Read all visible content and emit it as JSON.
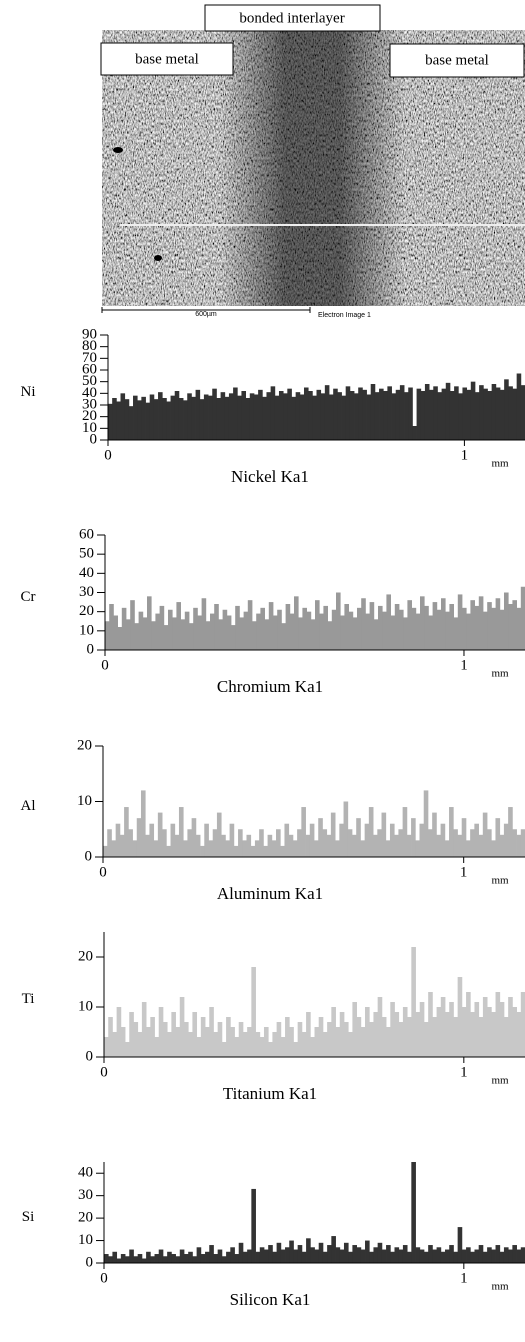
{
  "image": {
    "labels": {
      "center": "bonded interlayer",
      "left": "base metal",
      "right": "base metal"
    },
    "scale_bar": "600µm",
    "caption": "Electron Image 1"
  },
  "chart_data": [
    {
      "type": "bar",
      "ylabel": "Ni",
      "title": "Nickel Ka1",
      "xunit": "mm",
      "color": "#333333",
      "ylim": [
        0,
        90
      ],
      "yticks": [
        0,
        10,
        20,
        30,
        40,
        50,
        60,
        70,
        80,
        90
      ],
      "xlim": [
        0,
        1.17
      ],
      "xticks": [
        0,
        1
      ],
      "grid": false,
      "values": [
        31,
        36,
        33,
        40,
        35,
        29,
        38,
        34,
        37,
        32,
        39,
        35,
        41,
        36,
        33,
        38,
        42,
        36,
        34,
        40,
        37,
        43,
        35,
        39,
        38,
        44,
        36,
        41,
        37,
        40,
        45,
        38,
        42,
        36,
        40,
        39,
        43,
        37,
        41,
        46,
        38,
        42,
        40,
        44,
        37,
        41,
        39,
        45,
        42,
        38,
        43,
        40,
        47,
        39,
        44,
        41,
        38,
        46,
        42,
        40,
        45,
        43,
        39,
        48,
        41,
        44,
        42,
        46,
        40,
        43,
        47,
        41,
        45,
        12,
        44,
        42,
        48,
        43,
        46,
        41,
        44,
        49,
        42,
        46,
        40,
        45,
        43,
        50,
        41,
        47,
        44,
        42,
        48,
        45,
        43,
        52,
        46,
        44,
        57,
        47
      ]
    },
    {
      "type": "bar",
      "ylabel": "Cr",
      "title": "Chromium Ka1",
      "xunit": "mm",
      "color": "#999999",
      "ylim": [
        0,
        60
      ],
      "yticks": [
        0,
        10,
        20,
        30,
        40,
        50,
        60
      ],
      "xlim": [
        0,
        1.17
      ],
      "xticks": [
        0,
        1
      ],
      "grid": false,
      "values": [
        15,
        24,
        18,
        12,
        22,
        16,
        26,
        14,
        20,
        17,
        28,
        15,
        19,
        23,
        13,
        21,
        17,
        25,
        16,
        20,
        14,
        22,
        18,
        27,
        15,
        19,
        24,
        16,
        21,
        18,
        13,
        23,
        17,
        20,
        26,
        15,
        19,
        22,
        16,
        25,
        18,
        21,
        14,
        24,
        19,
        28,
        17,
        22,
        20,
        16,
        26,
        19,
        23,
        15,
        21,
        30,
        18,
        24,
        20,
        17,
        22,
        27,
        19,
        25,
        16,
        23,
        20,
        29,
        18,
        24,
        21,
        17,
        26,
        22,
        19,
        28,
        23,
        18,
        25,
        21,
        27,
        20,
        24,
        17,
        29,
        22,
        19,
        26,
        23,
        28,
        20,
        25,
        22,
        27,
        21,
        30,
        24,
        26,
        22,
        33
      ]
    },
    {
      "type": "bar",
      "ylabel": "Al",
      "title": "Aluminum Ka1",
      "xunit": "mm",
      "color": "#b3b3b3",
      "ylim": [
        0,
        20
      ],
      "yticks": [
        0,
        10,
        20
      ],
      "xlim": [
        0,
        1.17
      ],
      "xticks": [
        0,
        1
      ],
      "grid": false,
      "values": [
        2,
        5,
        3,
        6,
        4,
        9,
        5,
        3,
        7,
        12,
        4,
        6,
        3,
        8,
        5,
        2,
        6,
        4,
        9,
        3,
        5,
        7,
        4,
        2,
        6,
        3,
        5,
        8,
        4,
        3,
        6,
        2,
        5,
        3,
        4,
        2,
        3,
        5,
        2,
        4,
        3,
        5,
        2,
        6,
        4,
        3,
        5,
        9,
        4,
        6,
        3,
        7,
        5,
        4,
        8,
        3,
        6,
        10,
        5,
        4,
        7,
        3,
        6,
        9,
        4,
        5,
        8,
        3,
        6,
        4,
        5,
        9,
        4,
        7,
        3,
        6,
        12,
        5,
        8,
        4,
        6,
        3,
        9,
        5,
        4,
        7,
        3,
        5,
        6,
        4,
        8,
        5,
        3,
        7,
        4,
        6,
        9,
        5,
        4,
        5
      ]
    },
    {
      "type": "bar",
      "ylabel": "Ti",
      "title": "Titanium Ka1",
      "xunit": "mm",
      "color": "#c8c8c8",
      "ylim": [
        0,
        25
      ],
      "yticks": [
        0,
        10,
        20
      ],
      "xlim": [
        0,
        1.17
      ],
      "xticks": [
        0,
        1
      ],
      "grid": false,
      "values": [
        4,
        8,
        5,
        10,
        6,
        3,
        9,
        7,
        5,
        11,
        6,
        8,
        4,
        10,
        7,
        5,
        9,
        6,
        12,
        7,
        5,
        9,
        4,
        8,
        6,
        10,
        5,
        7,
        3,
        8,
        6,
        4,
        7,
        5,
        6,
        18,
        5,
        4,
        6,
        3,
        5,
        7,
        4,
        8,
        6,
        3,
        7,
        5,
        9,
        4,
        6,
        8,
        5,
        7,
        10,
        6,
        9,
        7,
        5,
        11,
        8,
        6,
        10,
        7,
        9,
        12,
        8,
        6,
        11,
        9,
        7,
        10,
        8,
        22,
        9,
        11,
        7,
        13,
        8,
        10,
        12,
        9,
        11,
        8,
        16,
        10,
        13,
        9,
        11,
        8,
        12,
        10,
        9,
        13,
        11,
        8,
        12,
        10,
        9,
        13
      ]
    },
    {
      "type": "bar",
      "ylabel": "Si",
      "title": "Silicon Ka1",
      "xunit": "mm",
      "color": "#333333",
      "ylim": [
        0,
        45
      ],
      "yticks": [
        0,
        10,
        20,
        30,
        40
      ],
      "xlim": [
        0,
        1.17
      ],
      "xticks": [
        0,
        1
      ],
      "grid": false,
      "values": [
        4,
        3,
        5,
        2,
        4,
        3,
        6,
        3,
        4,
        2,
        5,
        3,
        4,
        6,
        3,
        5,
        4,
        3,
        6,
        4,
        5,
        3,
        7,
        4,
        5,
        8,
        4,
        6,
        3,
        5,
        7,
        4,
        9,
        5,
        6,
        33,
        5,
        7,
        6,
        8,
        5,
        9,
        6,
        7,
        10,
        6,
        8,
        5,
        11,
        7,
        6,
        9,
        5,
        8,
        12,
        7,
        6,
        9,
        5,
        8,
        7,
        6,
        10,
        5,
        7,
        9,
        6,
        8,
        5,
        7,
        6,
        8,
        5,
        45,
        7,
        6,
        5,
        8,
        6,
        7,
        5,
        6,
        8,
        5,
        16,
        6,
        7,
        5,
        6,
        8,
        5,
        7,
        6,
        8,
        5,
        7,
        6,
        8,
        6,
        7
      ]
    }
  ]
}
